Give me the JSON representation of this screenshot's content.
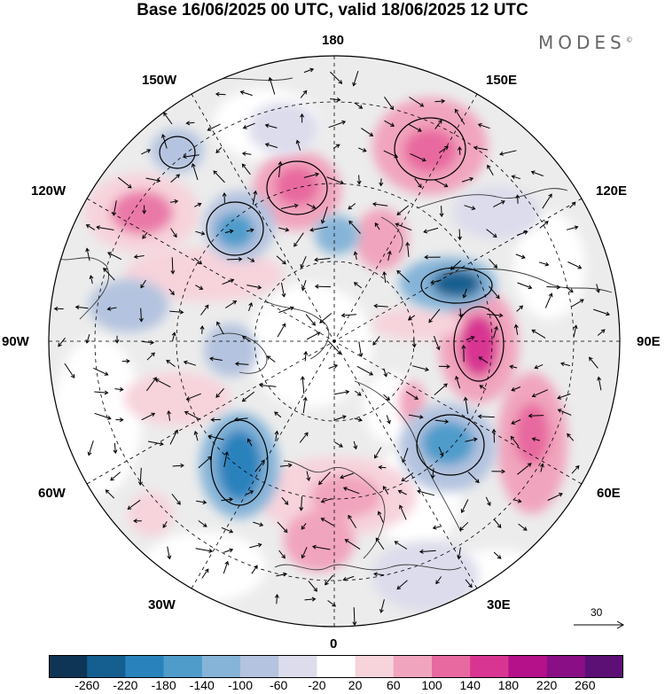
{
  "title": "Base 16/06/2025 00 UTC, valid 18/06/2025 12 UTC",
  "logo": "MODES",
  "logo_mark": "©",
  "longitude_labels": {
    "top": "180",
    "bottom": "0",
    "left": "90W",
    "right": "90E",
    "upper_left_1": "150W",
    "upper_left_2": "120W",
    "lower_left_1": "60W",
    "lower_left_2": "30W",
    "upper_right_1": "150E",
    "upper_right_2": "120E",
    "lower_right_1": "60E",
    "lower_right_2": "30E"
  },
  "reference_vector": {
    "value": "30"
  },
  "colorbar": {
    "labels": [
      "-260",
      "-220",
      "-180",
      "-140",
      "-100",
      "-60",
      "-20",
      "20",
      "60",
      "100",
      "140",
      "180",
      "220",
      "260"
    ],
    "colors": [
      "#0e3555",
      "#145f8f",
      "#2a82bd",
      "#4f9ccb",
      "#86b4d8",
      "#b4c3df",
      "#dcdcec",
      "#ffffff",
      "#f7d3dc",
      "#f1a4bd",
      "#e8699f",
      "#d83592",
      "#b5118a",
      "#8a0f86",
      "#5c0f75"
    ]
  },
  "map": {
    "projection": "north polar stereographic",
    "background_color": "#ececec",
    "positive_anomaly_color": "#e8699f",
    "negative_anomaly_color": "#2a82bd"
  }
}
